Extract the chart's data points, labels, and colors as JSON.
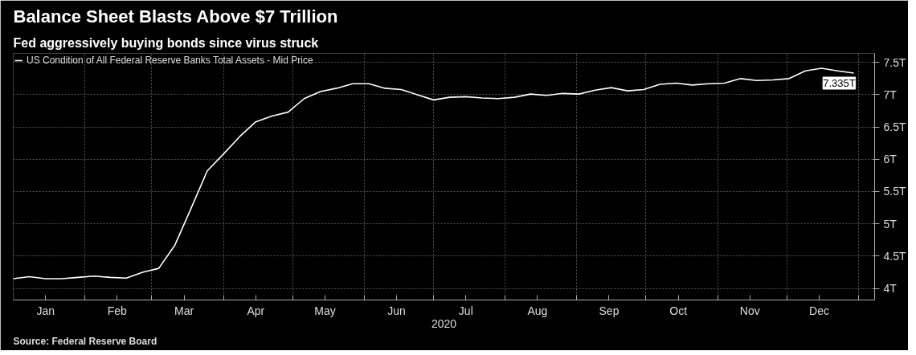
{
  "chart_data": {
    "type": "line",
    "title": "Balance Sheet Blasts Above $7 Trillion",
    "subtitle": "Fed aggressively buying bonds since virus struck",
    "xlabel": "2020",
    "annotations": [
      {
        "text": "7.335T",
        "x": "2020-12-30",
        "y": 7.335
      },
      "Source: Federal Reserve Board"
    ],
    "x": [
      "2020-01-01",
      "2020-01-08",
      "2020-01-15",
      "2020-01-22",
      "2020-01-29",
      "2020-02-05",
      "2020-02-12",
      "2020-02-19",
      "2020-02-26",
      "2020-03-04",
      "2020-03-11",
      "2020-03-18",
      "2020-03-25",
      "2020-04-01",
      "2020-04-08",
      "2020-04-15",
      "2020-04-22",
      "2020-04-29",
      "2020-05-06",
      "2020-05-13",
      "2020-05-20",
      "2020-05-27",
      "2020-06-03",
      "2020-06-10",
      "2020-06-17",
      "2020-06-24",
      "2020-07-01",
      "2020-07-08",
      "2020-07-15",
      "2020-07-22",
      "2020-07-29",
      "2020-08-05",
      "2020-08-12",
      "2020-08-19",
      "2020-08-26",
      "2020-09-02",
      "2020-09-09",
      "2020-09-16",
      "2020-09-23",
      "2020-09-30",
      "2020-10-07",
      "2020-10-14",
      "2020-10-21",
      "2020-10-28",
      "2020-11-04",
      "2020-11-11",
      "2020-11-18",
      "2020-11-25",
      "2020-12-02",
      "2020-12-09",
      "2020-12-16",
      "2020-12-23",
      "2020-12-30"
    ],
    "series": [
      {
        "name": "US Condition of All Federal Reserve Banks Total Assets - Mid Price",
        "color": "#ffffff",
        "values": [
          4.15,
          4.18,
          4.15,
          4.15,
          4.17,
          4.19,
          4.17,
          4.16,
          4.25,
          4.31,
          4.67,
          5.24,
          5.82,
          6.08,
          6.35,
          6.58,
          6.67,
          6.73,
          6.94,
          7.05,
          7.1,
          7.17,
          7.17,
          7.1,
          7.08,
          7.0,
          6.92,
          6.96,
          6.97,
          6.95,
          6.94,
          6.96,
          7.01,
          6.99,
          7.02,
          7.01,
          7.07,
          7.11,
          7.06,
          7.08,
          7.16,
          7.18,
          7.15,
          7.17,
          7.18,
          7.25,
          7.22,
          7.23,
          7.25,
          7.37,
          7.41,
          7.37,
          7.335
        ]
      }
    ],
    "xlim": [
      "2020-01-01",
      "2021-01-08"
    ],
    "xticks": [
      {
        "value": "2020-01-15",
        "label": "Jan"
      },
      {
        "value": "2020-02-01",
        "label": null
      },
      {
        "value": "2020-02-15",
        "label": "Feb"
      },
      {
        "value": "2020-03-01",
        "label": null
      },
      {
        "value": "2020-03-15",
        "label": "Mar"
      },
      {
        "value": "2020-04-01",
        "label": null
      },
      {
        "value": "2020-04-15",
        "label": "Apr"
      },
      {
        "value": "2020-05-01",
        "label": null
      },
      {
        "value": "2020-05-15",
        "label": "May"
      },
      {
        "value": "2020-06-01",
        "label": null
      },
      {
        "value": "2020-06-15",
        "label": "Jun"
      },
      {
        "value": "2020-07-01",
        "label": null
      },
      {
        "value": "2020-07-15",
        "label": "Jul"
      },
      {
        "value": "2020-08-01",
        "label": null
      },
      {
        "value": "2020-08-15",
        "label": "Aug"
      },
      {
        "value": "2020-09-01",
        "label": null
      },
      {
        "value": "2020-09-15",
        "label": "Sep"
      },
      {
        "value": "2020-10-01",
        "label": null
      },
      {
        "value": "2020-10-15",
        "label": "Oct"
      },
      {
        "value": "2020-11-01",
        "label": null
      },
      {
        "value": "2020-11-15",
        "label": "Nov"
      },
      {
        "value": "2020-12-01",
        "label": null
      },
      {
        "value": "2020-12-15",
        "label": "Dec"
      },
      {
        "value": "2021-01-01",
        "label": null
      }
    ],
    "ylim": [
      3.82,
      7.64
    ],
    "yticks": [
      {
        "value": 4,
        "label": "4T"
      },
      {
        "value": 4.5,
        "label": "4.5T"
      },
      {
        "value": 5,
        "label": "5T"
      },
      {
        "value": 5.5,
        "label": "5.5T"
      },
      {
        "value": 6,
        "label": "6T"
      },
      {
        "value": 6.5,
        "label": "6.5T"
      },
      {
        "value": 7,
        "label": "7T"
      },
      {
        "value": 7.5,
        "label": "7.5T"
      }
    ],
    "grid": true,
    "legend": "top left"
  }
}
